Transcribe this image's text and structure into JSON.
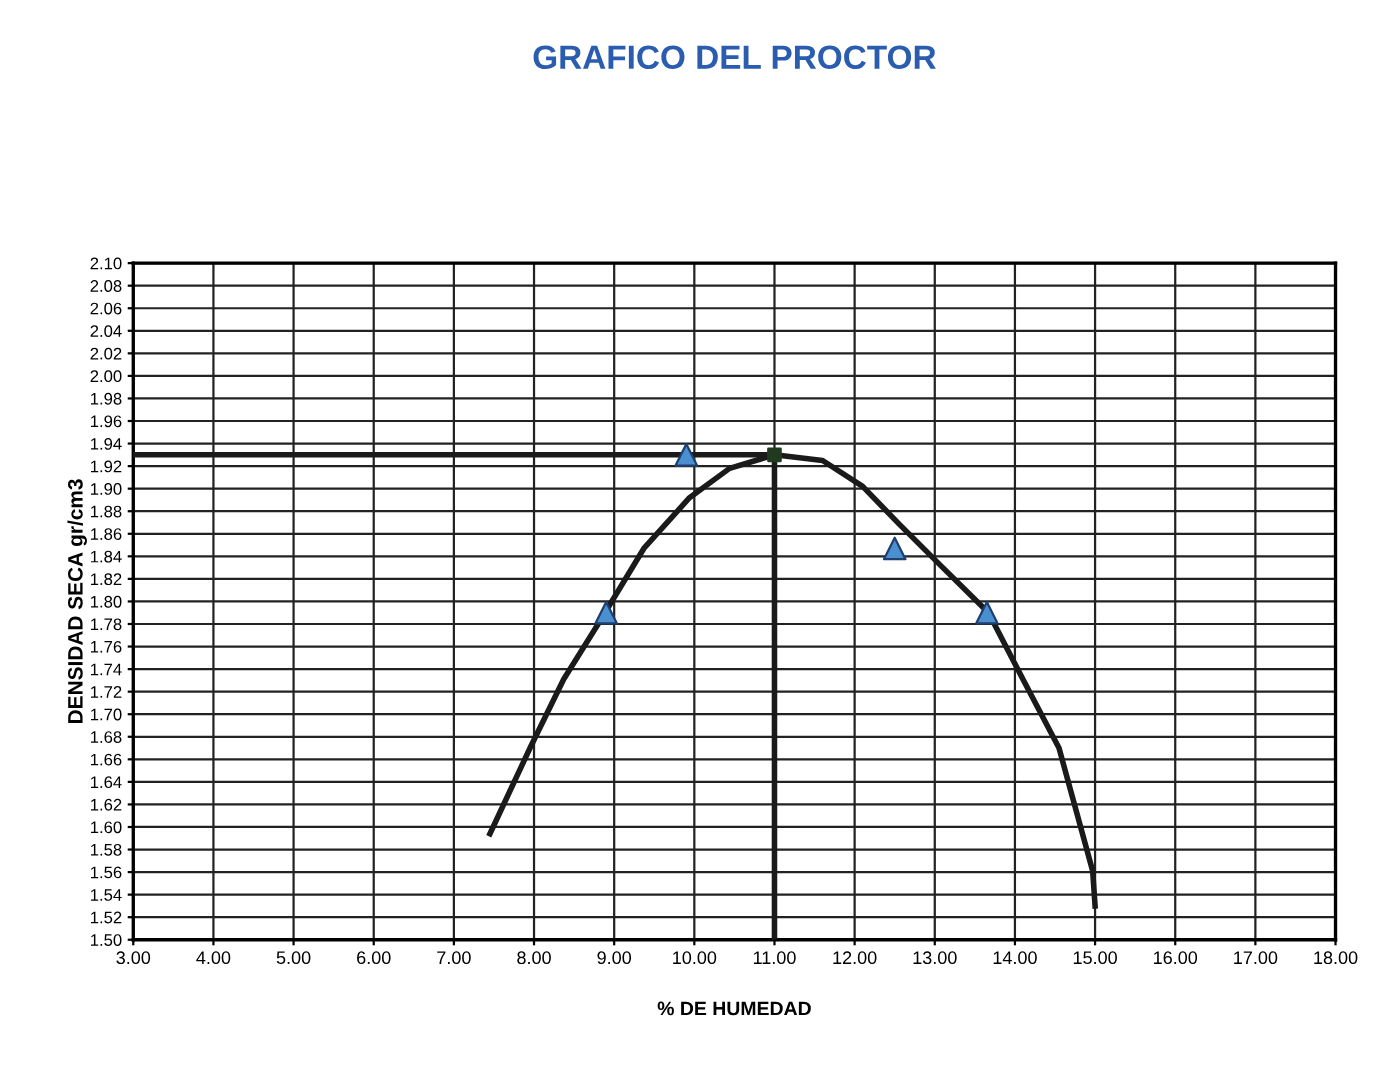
{
  "chart_data": {
    "type": "scatter",
    "title": "GRAFICO DEL PROCTOR",
    "xlabel": "% DE HUMEDAD",
    "ylabel": "DENSIDAD SECA gr/cm3",
    "series": [
      {
        "type": "line",
        "color": "#1a1a1a",
        "marker": "none",
        "x": [
          7.45,
          7.95,
          8.37,
          8.8,
          9.37,
          9.94,
          10.44,
          11.0,
          11.6,
          12.1,
          12.55,
          13.1,
          13.67,
          14.1,
          14.55,
          14.97,
          15.0
        ],
        "values": [
          1.594,
          1.67,
          1.731,
          1.78,
          1.847,
          1.892,
          1.918,
          1.93,
          1.925,
          1.902,
          1.869,
          1.83,
          1.79,
          1.731,
          1.67,
          1.561,
          1.53
        ]
      },
      {
        "type": "line",
        "color": "#1a1a1a",
        "marker": "none",
        "x": [
          3.0,
          11.0,
          11.0
        ],
        "values": [
          1.93,
          1.93,
          1.5
        ]
      },
      {
        "color": "#4a8fd0",
        "marker": "triangle",
        "x": [
          8.9,
          9.9,
          12.5,
          13.65
        ],
        "values": [
          1.79,
          1.93,
          1.847,
          1.79
        ]
      },
      {
        "color": "#1f3a1f",
        "marker": "square",
        "x": [
          11.0
        ],
        "values": [
          1.93
        ]
      }
    ],
    "xlim": [
      3,
      18
    ],
    "xticks": [
      {
        "value": 3,
        "label": "3.00"
      },
      {
        "value": 4,
        "label": "4.00"
      },
      {
        "value": 5,
        "label": "5.00"
      },
      {
        "value": 6,
        "label": "6.00"
      },
      {
        "value": 7,
        "label": "7.00"
      },
      {
        "value": 8,
        "label": "8.00"
      },
      {
        "value": 9,
        "label": "9.00"
      },
      {
        "value": 10,
        "label": "10.00"
      },
      {
        "value": 11,
        "label": "11.00"
      },
      {
        "value": 12,
        "label": "12.00"
      },
      {
        "value": 13,
        "label": "13.00"
      },
      {
        "value": 14,
        "label": "14.00"
      },
      {
        "value": 15,
        "label": "15.00"
      },
      {
        "value": 16,
        "label": "16.00"
      },
      {
        "value": 17,
        "label": "17.00"
      },
      {
        "value": 18,
        "label": "18.00"
      }
    ],
    "ylim": [
      1.5,
      2.1
    ],
    "yticks": [
      {
        "value": 1.5,
        "label": "1.50"
      },
      {
        "value": 1.52,
        "label": "1.52"
      },
      {
        "value": 1.54,
        "label": "1.54"
      },
      {
        "value": 1.56,
        "label": "1.56"
      },
      {
        "value": 1.58,
        "label": "1.58"
      },
      {
        "value": 1.6,
        "label": "1.60"
      },
      {
        "value": 1.62,
        "label": "1.62"
      },
      {
        "value": 1.64,
        "label": "1.64"
      },
      {
        "value": 1.66,
        "label": "1.66"
      },
      {
        "value": 1.68,
        "label": "1.68"
      },
      {
        "value": 1.7,
        "label": "1.70"
      },
      {
        "value": 1.72,
        "label": "1.72"
      },
      {
        "value": 1.74,
        "label": "1.74"
      },
      {
        "value": 1.76,
        "label": "1.76"
      },
      {
        "value": 1.78,
        "label": "1.78"
      },
      {
        "value": 1.8,
        "label": "1.80"
      },
      {
        "value": 1.82,
        "label": "1.82"
      },
      {
        "value": 1.84,
        "label": "1.84"
      },
      {
        "value": 1.86,
        "label": "1.86"
      },
      {
        "value": 1.88,
        "label": "1.88"
      },
      {
        "value": 1.9,
        "label": "1.90"
      },
      {
        "value": 1.92,
        "label": "1.92"
      },
      {
        "value": 1.94,
        "label": "1.94"
      },
      {
        "value": 1.96,
        "label": "1.96"
      },
      {
        "value": 1.98,
        "label": "1.98"
      },
      {
        "value": 2.0,
        "label": "2.00"
      },
      {
        "value": 2.02,
        "label": "2.02"
      },
      {
        "value": 2.04,
        "label": "2.04"
      },
      {
        "value": 2.06,
        "label": "2.06"
      },
      {
        "value": 2.08,
        "label": "2.08"
      },
      {
        "value": 2.1,
        "label": "2.10"
      }
    ],
    "grid": true
  }
}
